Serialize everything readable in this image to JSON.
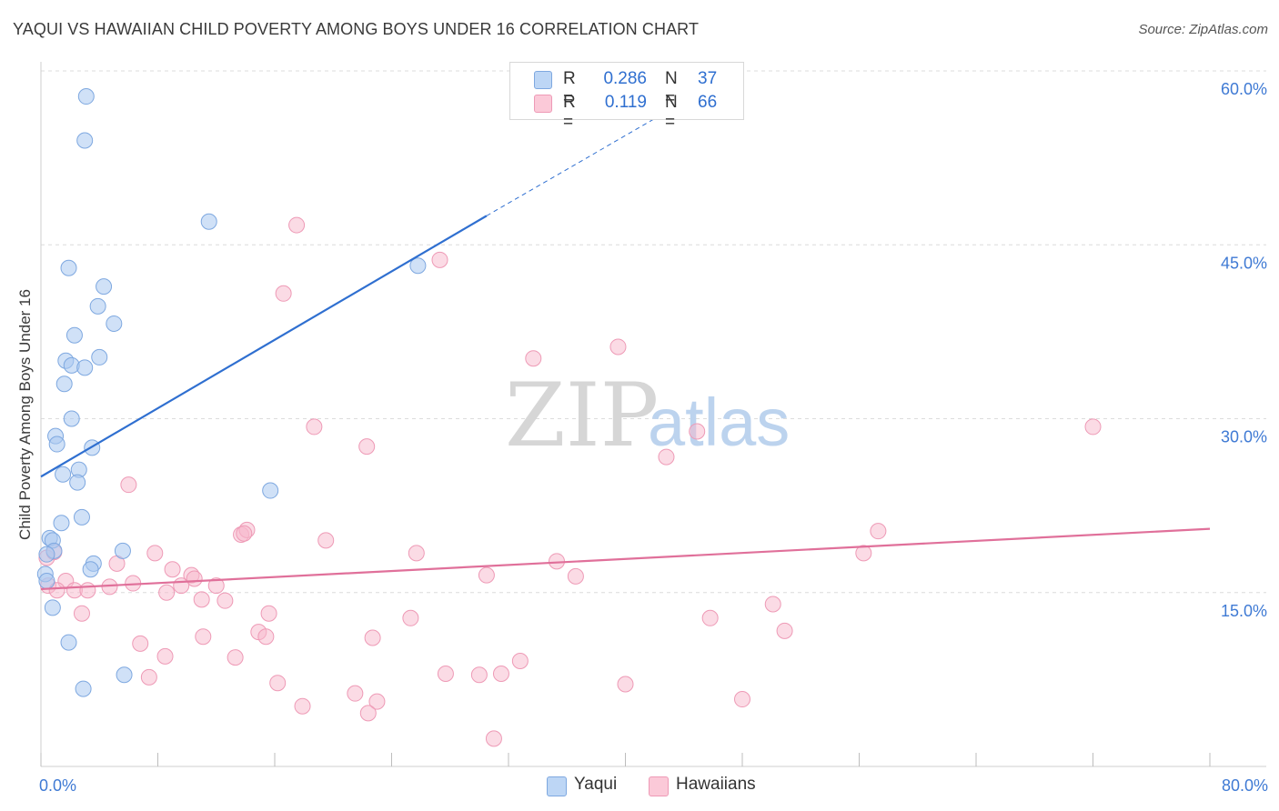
{
  "title": "YAQUI VS HAWAIIAN CHILD POVERTY AMONG BOYS UNDER 16 CORRELATION CHART",
  "source": "Source: ZipAtlas.com",
  "watermark": {
    "zip": "ZIP",
    "atlas": "atlas"
  },
  "legend": {
    "r_label": "R =",
    "n_label": "N =",
    "rows": [
      {
        "name": "Yaqui",
        "r": "0.286",
        "n": "37"
      },
      {
        "name": "Hawaiians",
        "r": "0.119",
        "n": "66"
      }
    ]
  },
  "bottom_legend": {
    "yaqui": "Yaqui",
    "hawaiians": "Hawaiians"
  },
  "chart_data": {
    "type": "scatter",
    "title": "YAQUI VS HAWAIIAN CHILD POVERTY AMONG BOYS UNDER 16 CORRELATION CHART",
    "xlabel": "",
    "ylabel": "Child Poverty Among Boys Under 16",
    "xlim": [
      0,
      80
    ],
    "ylim": [
      0,
      60
    ],
    "x_tick_labels": [
      "0.0%",
      "80.0%"
    ],
    "y_ticks": [
      15,
      30,
      45,
      60
    ],
    "y_tick_labels": [
      "15.0%",
      "30.0%",
      "45.0%",
      "60.0%"
    ],
    "grid": true,
    "colors": {
      "yaqui": "#a9c8f0",
      "yaqui_line": "#2f6fd0",
      "hawaiians": "#f7b8cc",
      "hawaiians_line": "#e0709a"
    },
    "series": [
      {
        "name": "Yaqui",
        "r": 0.286,
        "n": 37,
        "trend": {
          "x": [
            0,
            30.5
          ],
          "y": [
            25.0,
            47.5
          ],
          "dashed_to": [
            46,
            58.8
          ]
        },
        "points": [
          [
            3.1,
            57.8
          ],
          [
            3.0,
            54.0
          ],
          [
            11.5,
            47.0
          ],
          [
            1.9,
            43.0
          ],
          [
            25.8,
            43.2
          ],
          [
            4.3,
            41.4
          ],
          [
            3.9,
            39.7
          ],
          [
            5.0,
            38.2
          ],
          [
            2.3,
            37.2
          ],
          [
            4.0,
            35.3
          ],
          [
            1.7,
            35.0
          ],
          [
            2.1,
            34.6
          ],
          [
            3.0,
            34.4
          ],
          [
            1.6,
            33.0
          ],
          [
            2.1,
            30.0
          ],
          [
            1.0,
            28.5
          ],
          [
            1.1,
            27.8
          ],
          [
            3.5,
            27.5
          ],
          [
            2.6,
            25.6
          ],
          [
            1.5,
            25.2
          ],
          [
            2.5,
            24.5
          ],
          [
            15.7,
            23.8
          ],
          [
            2.8,
            21.5
          ],
          [
            1.4,
            21.0
          ],
          [
            0.6,
            19.7
          ],
          [
            0.8,
            19.5
          ],
          [
            0.9,
            18.6
          ],
          [
            0.4,
            18.3
          ],
          [
            5.6,
            18.6
          ],
          [
            3.6,
            17.5
          ],
          [
            3.4,
            17.0
          ],
          [
            0.3,
            16.6
          ],
          [
            0.4,
            16.0
          ],
          [
            0.8,
            13.7
          ],
          [
            1.9,
            10.7
          ],
          [
            5.7,
            7.9
          ],
          [
            2.9,
            6.7
          ]
        ]
      },
      {
        "name": "Hawaiians",
        "r": 0.119,
        "n": 66,
        "trend": {
          "x": [
            0,
            80
          ],
          "y": [
            15.3,
            20.5
          ]
        },
        "points": [
          [
            17.5,
            46.7
          ],
          [
            27.3,
            43.7
          ],
          [
            16.6,
            40.8
          ],
          [
            33.7,
            35.2
          ],
          [
            39.5,
            36.2
          ],
          [
            18.7,
            29.3
          ],
          [
            44.9,
            28.9
          ],
          [
            72.0,
            29.3
          ],
          [
            22.3,
            27.6
          ],
          [
            42.8,
            26.7
          ],
          [
            6.0,
            24.3
          ],
          [
            13.7,
            20.0
          ],
          [
            14.1,
            20.4
          ],
          [
            13.9,
            20.1
          ],
          [
            19.5,
            19.5
          ],
          [
            57.3,
            20.3
          ],
          [
            7.8,
            18.4
          ],
          [
            25.7,
            18.4
          ],
          [
            56.3,
            18.4
          ],
          [
            0.4,
            18.0
          ],
          [
            0.9,
            18.5
          ],
          [
            5.2,
            17.5
          ],
          [
            35.3,
            17.7
          ],
          [
            10.3,
            16.5
          ],
          [
            10.5,
            16.2
          ],
          [
            30.5,
            16.5
          ],
          [
            36.6,
            16.4
          ],
          [
            1.7,
            16.0
          ],
          [
            6.3,
            15.8
          ],
          [
            9.6,
            15.6
          ],
          [
            12.0,
            15.6
          ],
          [
            0.5,
            15.6
          ],
          [
            1.1,
            15.2
          ],
          [
            2.3,
            15.2
          ],
          [
            3.2,
            15.2
          ],
          [
            4.7,
            15.5
          ],
          [
            8.6,
            15.0
          ],
          [
            11.0,
            14.4
          ],
          [
            12.6,
            14.3
          ],
          [
            2.8,
            13.2
          ],
          [
            15.6,
            13.2
          ],
          [
            50.1,
            14.0
          ],
          [
            25.3,
            12.8
          ],
          [
            45.8,
            12.8
          ],
          [
            14.9,
            11.6
          ],
          [
            15.4,
            11.2
          ],
          [
            11.1,
            11.2
          ],
          [
            22.7,
            11.1
          ],
          [
            50.9,
            11.7
          ],
          [
            6.8,
            10.6
          ],
          [
            8.5,
            9.5
          ],
          [
            13.3,
            9.4
          ],
          [
            32.8,
            9.1
          ],
          [
            27.7,
            8.0
          ],
          [
            30.0,
            7.9
          ],
          [
            31.5,
            8.0
          ],
          [
            7.4,
            7.7
          ],
          [
            16.2,
            7.2
          ],
          [
            40.0,
            7.1
          ],
          [
            17.9,
            5.2
          ],
          [
            21.5,
            6.3
          ],
          [
            23.0,
            5.6
          ],
          [
            22.4,
            4.6
          ],
          [
            48.0,
            5.8
          ],
          [
            31.0,
            2.4
          ],
          [
            9.0,
            17.0
          ]
        ]
      }
    ]
  }
}
